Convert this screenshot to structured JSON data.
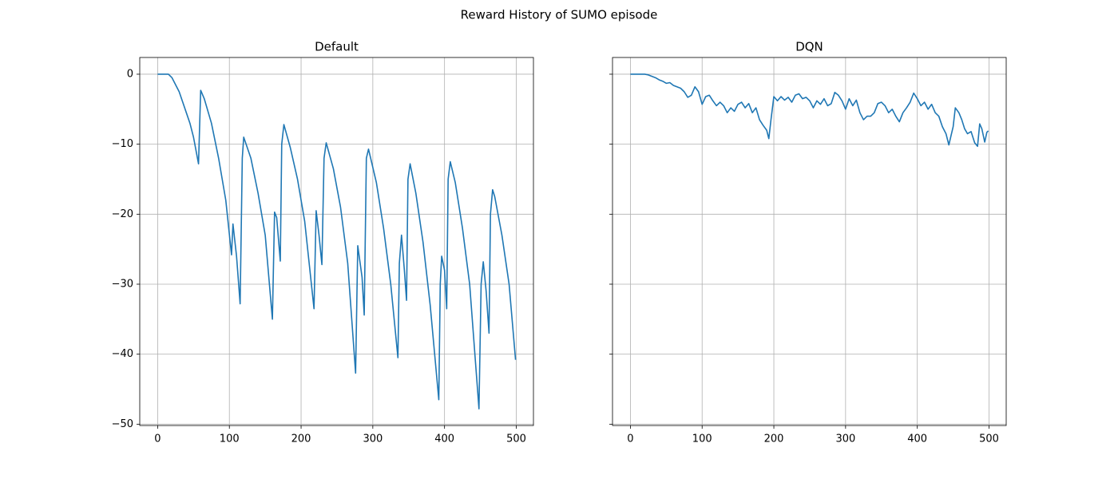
{
  "title": "Reward History of SUMO episode",
  "chart_data": [
    {
      "type": "line",
      "title": "Default",
      "x": [
        0,
        15,
        20,
        30,
        40,
        45,
        50,
        57,
        60,
        65,
        75,
        85,
        95,
        103,
        105,
        110,
        115,
        118,
        120,
        130,
        140,
        150,
        160,
        163,
        166,
        171,
        173,
        176,
        185,
        195,
        205,
        218,
        221,
        225,
        229,
        232,
        235,
        245,
        255,
        265,
        276,
        279,
        285,
        288,
        291,
        294,
        305,
        315,
        325,
        335,
        337,
        340,
        344,
        347,
        349,
        352,
        360,
        370,
        380,
        392,
        394,
        396,
        400,
        403,
        405,
        408,
        415,
        425,
        435,
        448,
        451,
        454,
        458,
        462,
        464,
        467,
        470,
        480,
        490,
        499
      ],
      "series": [
        {
          "color": "#1f77b4",
          "values": [
            0,
            0,
            -0.5,
            -2.5,
            -5.5,
            -7,
            -9,
            -12.8,
            -2.3,
            -3.5,
            -7,
            -12,
            -18,
            -25.8,
            -21.4,
            -26,
            -32.8,
            -12,
            -9,
            -12,
            -17,
            -23,
            -35,
            -19.7,
            -20.5,
            -26.7,
            -10,
            -7.2,
            -10.5,
            -15,
            -21,
            -33.5,
            -19.5,
            -23,
            -27.2,
            -12,
            -9.8,
            -13.5,
            -19,
            -27,
            -42.7,
            -24.5,
            -29,
            -34.4,
            -12,
            -10.7,
            -15.5,
            -22,
            -30,
            -40.5,
            -27,
            -23,
            -28,
            -32.3,
            -15,
            -12.8,
            -17,
            -24,
            -33,
            -46.5,
            -30,
            -26,
            -28,
            -33.5,
            -15,
            -12.5,
            -15.5,
            -22,
            -30,
            -47.8,
            -30,
            -26.8,
            -31,
            -37,
            -20,
            -16.5,
            -17.5,
            -23,
            -30,
            -40.8
          ]
        }
      ],
      "xlim": [
        -24.95,
        523.95
      ],
      "ylim": [
        -50.19,
        2.39
      ],
      "xticks": [
        0,
        100,
        200,
        300,
        400,
        500
      ],
      "yticks": [
        {
          "value": -50,
          "label": "−50"
        },
        {
          "value": -40,
          "label": "−40"
        },
        {
          "value": -30,
          "label": "−30"
        },
        {
          "value": -20,
          "label": "−20"
        },
        {
          "value": -10,
          "label": "−10"
        },
        0
      ],
      "grid": true
    },
    {
      "type": "line",
      "title": "DQN",
      "x": [
        0,
        10,
        20,
        25,
        30,
        35,
        40,
        45,
        50,
        55,
        60,
        65,
        70,
        75,
        80,
        85,
        90,
        95,
        100,
        105,
        110,
        115,
        120,
        125,
        130,
        135,
        140,
        145,
        150,
        155,
        160,
        165,
        170,
        175,
        180,
        185,
        190,
        193,
        196,
        200,
        205,
        210,
        215,
        220,
        225,
        230,
        235,
        240,
        245,
        250,
        255,
        260,
        265,
        270,
        275,
        280,
        285,
        290,
        295,
        300,
        305,
        310,
        315,
        320,
        325,
        330,
        335,
        340,
        345,
        350,
        355,
        360,
        365,
        370,
        375,
        380,
        385,
        390,
        395,
        400,
        405,
        410,
        415,
        420,
        425,
        430,
        435,
        440,
        444,
        447,
        450,
        453,
        458,
        462,
        466,
        470,
        475,
        480,
        484,
        487,
        490,
        494,
        497,
        499
      ],
      "series": [
        {
          "color": "#1f77b4",
          "values": [
            0,
            0,
            0,
            -0.1,
            -0.3,
            -0.5,
            -0.8,
            -1.0,
            -1.3,
            -1.2,
            -1.6,
            -1.8,
            -2.0,
            -2.5,
            -3.3,
            -3.0,
            -1.8,
            -2.5,
            -4.3,
            -3.2,
            -3.0,
            -3.8,
            -4.5,
            -4.0,
            -4.5,
            -5.5,
            -4.8,
            -5.3,
            -4.3,
            -4.0,
            -4.8,
            -4.2,
            -5.5,
            -4.8,
            -6.5,
            -7.3,
            -8.0,
            -9.2,
            -6.5,
            -3.2,
            -3.8,
            -3.2,
            -3.7,
            -3.3,
            -4.0,
            -3.0,
            -2.8,
            -3.5,
            -3.3,
            -3.8,
            -4.8,
            -3.8,
            -4.3,
            -3.5,
            -4.5,
            -4.2,
            -2.6,
            -3.0,
            -3.8,
            -5.0,
            -3.5,
            -4.5,
            -3.7,
            -5.5,
            -6.5,
            -6.0,
            -6.0,
            -5.5,
            -4.2,
            -4.0,
            -4.5,
            -5.5,
            -5.0,
            -6.0,
            -6.8,
            -5.5,
            -4.8,
            -4.0,
            -2.7,
            -3.5,
            -4.5,
            -4.0,
            -5.0,
            -4.3,
            -5.5,
            -6.0,
            -7.5,
            -8.5,
            -10.1,
            -8.8,
            -7.5,
            -4.8,
            -5.5,
            -6.5,
            -7.8,
            -8.5,
            -8.2,
            -9.8,
            -10.3,
            -7.1,
            -7.8,
            -9.7,
            -8.3,
            -8.1
          ]
        }
      ],
      "xlim": [
        -24.95,
        523.95
      ],
      "ylim": [
        -50.19,
        2.39
      ],
      "xticks": [
        0,
        100,
        200,
        300,
        400,
        500
      ],
      "yticks": [
        -50,
        -40,
        -30,
        -20,
        -10,
        0
      ],
      "grid": true,
      "sharey": true
    }
  ]
}
